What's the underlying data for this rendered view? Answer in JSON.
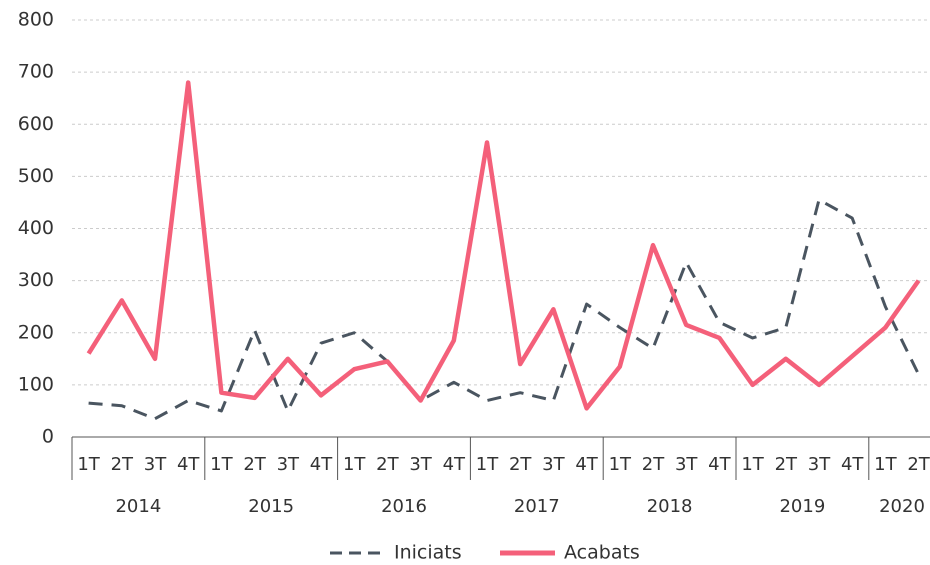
{
  "chart_data": {
    "type": "line",
    "groups": [
      {
        "name": "2014",
        "categories": [
          "1T",
          "2T",
          "3T",
          "4T"
        ]
      },
      {
        "name": "2015",
        "categories": [
          "1T",
          "2T",
          "3T",
          "4T"
        ]
      },
      {
        "name": "2016",
        "categories": [
          "1T",
          "2T",
          "3T",
          "4T"
        ]
      },
      {
        "name": "2017",
        "categories": [
          "1T",
          "2T",
          "3T",
          "4T"
        ]
      },
      {
        "name": "2018",
        "categories": [
          "1T",
          "2T",
          "3T",
          "4T"
        ]
      },
      {
        "name": "2019",
        "categories": [
          "1T",
          "2T",
          "3T",
          "4T"
        ]
      },
      {
        "name": "2020",
        "categories": [
          "1T",
          "2T"
        ]
      }
    ],
    "series": [
      {
        "name": "Iniciats",
        "color": "#4a5560",
        "dashed": true,
        "values": [
          65,
          60,
          35,
          70,
          50,
          205,
          50,
          180,
          200,
          145,
          70,
          105,
          70,
          85,
          70,
          255,
          210,
          170,
          335,
          220,
          190,
          210,
          455,
          420,
          250,
          120
        ]
      },
      {
        "name": "Acabats",
        "color": "#f4607a",
        "dashed": false,
        "values": [
          160,
          262,
          150,
          680,
          85,
          75,
          150,
          80,
          130,
          145,
          70,
          185,
          565,
          140,
          245,
          55,
          135,
          368,
          215,
          190,
          100,
          150,
          100,
          155,
          210,
          300
        ]
      }
    ],
    "ylim": [
      0,
      800
    ],
    "yticks": [
      0,
      100,
      200,
      300,
      400,
      500,
      600,
      700,
      800
    ],
    "grid": true
  }
}
